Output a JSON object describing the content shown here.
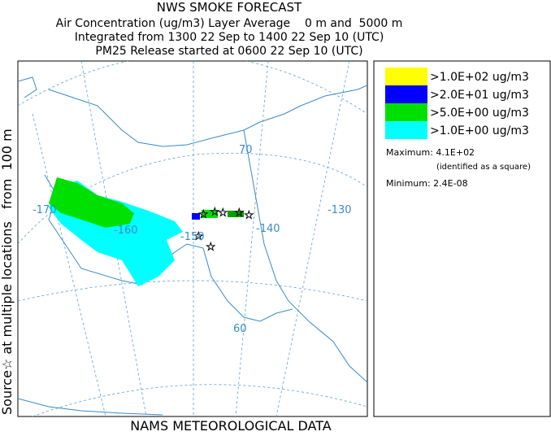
{
  "header": {
    "title": "NWS SMOKE FORECAST",
    "lines": [
      "Air Concentration (ug/m3) Layer Average    0 m and  5000 m",
      "Integrated from 1300 22 Sep to 1400 22 Sep 10 (UTC)",
      "PM25 Release started at 0600 22 Sep 10 (UTC)"
    ]
  },
  "side_label": "Source☆ at multiple locations   from  100 m",
  "footer": "NAMS METEOROLOGICAL DATA",
  "legend": {
    "items": [
      {
        "label": ">1.0E+02 ug/m3",
        "color": "#ffff00"
      },
      {
        "label": ">2.0E+01 ug/m3",
        "color": "#0000ff"
      },
      {
        "label": ">5.0E+00 ug/m3",
        "color": "#00e000"
      },
      {
        "label": ">1.0E+00 ug/m3",
        "color": "#00ffff"
      }
    ],
    "maximum": "Maximum: 4.1E+02",
    "maximum_note": "(identified as a square)",
    "minimum": "Minimum: 2.4E-08"
  },
  "map_labels": [
    "-170",
    "-160",
    "-150",
    "-140",
    "-130",
    "70",
    "60"
  ]
}
